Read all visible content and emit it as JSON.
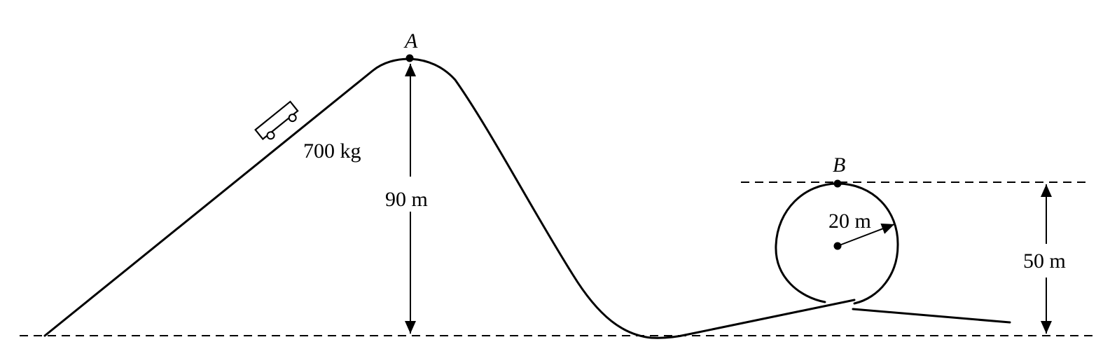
{
  "points": {
    "a": "A",
    "b": "B"
  },
  "labels": {
    "mass": "700 kg",
    "height_a": "90 m",
    "radius": "20 m",
    "height_b": "50 m"
  }
}
